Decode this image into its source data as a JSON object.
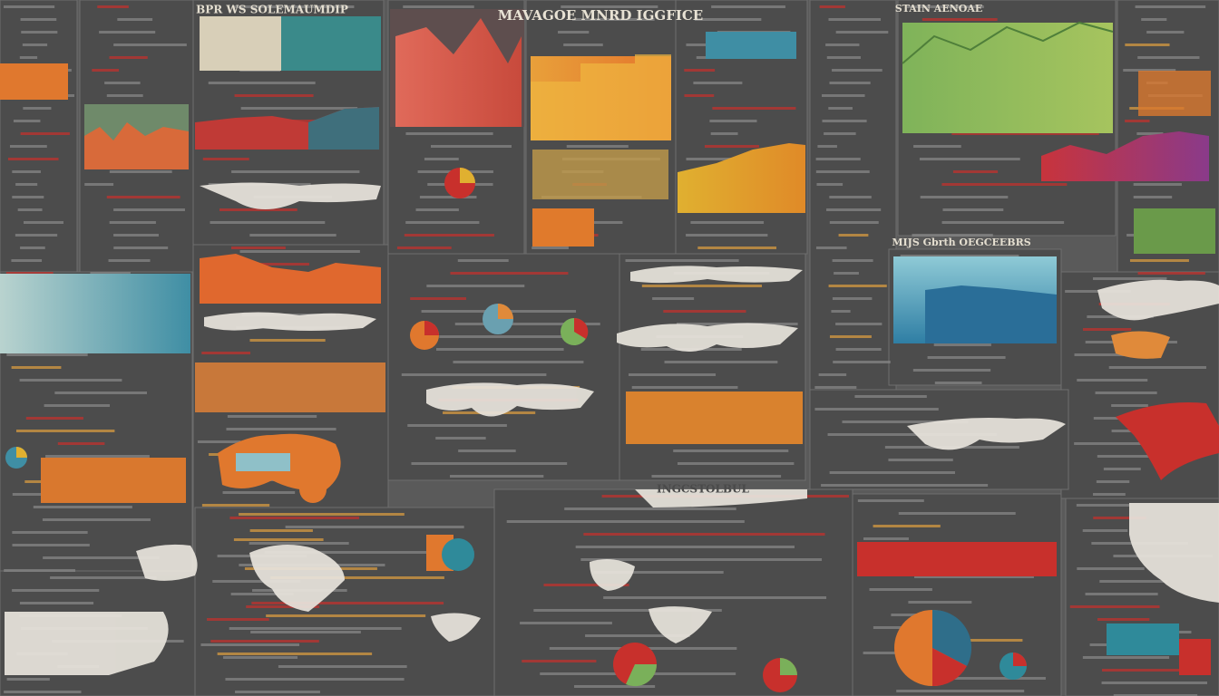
{
  "headings": [
    "BPR WS SOLEMAUMDIP",
    "MAVAGOE MNRD IGGFICE",
    "STAIN AENOAE",
    "MIJS Gbrth OEGCEEBRS",
    "INGCSTOLBUL"
  ]
}
